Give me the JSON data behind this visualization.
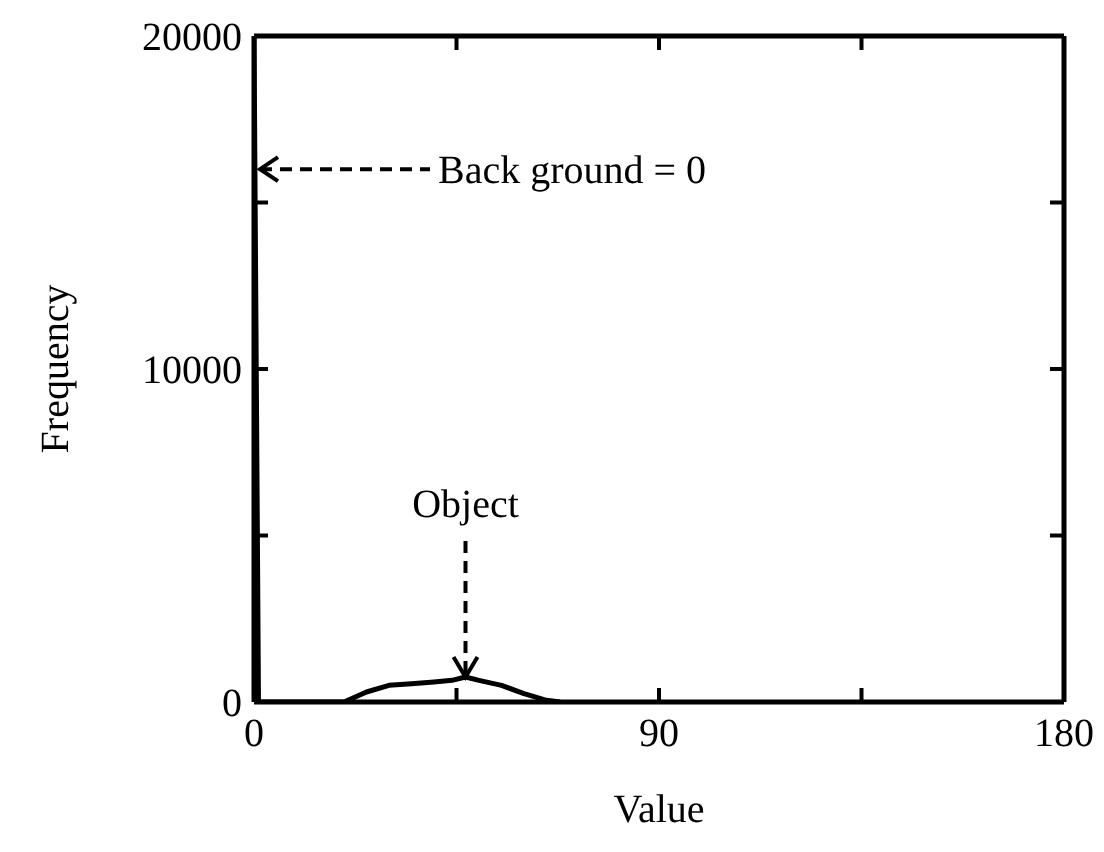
{
  "chart_data": {
    "type": "line",
    "xlabel": "Value",
    "ylabel": "Frequency",
    "x": [
      0,
      1,
      20,
      25,
      30,
      35,
      40,
      44,
      47,
      50,
      55,
      60,
      65,
      68
    ],
    "series": [
      {
        "color": "#000000",
        "values": [
          20000,
          0,
          0,
          300,
          500,
          550,
          600,
          650,
          750,
          650,
          500,
          250,
          50,
          0
        ]
      }
    ],
    "xlim": [
      0,
      180
    ],
    "xticks": [
      0,
      {
        "value": 45,
        "label": null
      },
      90,
      {
        "value": 135,
        "label": null
      },
      180
    ],
    "ylim": [
      0,
      20000
    ],
    "yticks": [
      0,
      {
        "value": 5000,
        "label": null
      },
      10000,
      {
        "value": 15000,
        "label": null
      },
      20000
    ],
    "annotations": [
      "Back ground = 0",
      {
        "text": "Object",
        "x": 47,
        "y": 750
      }
    ]
  }
}
